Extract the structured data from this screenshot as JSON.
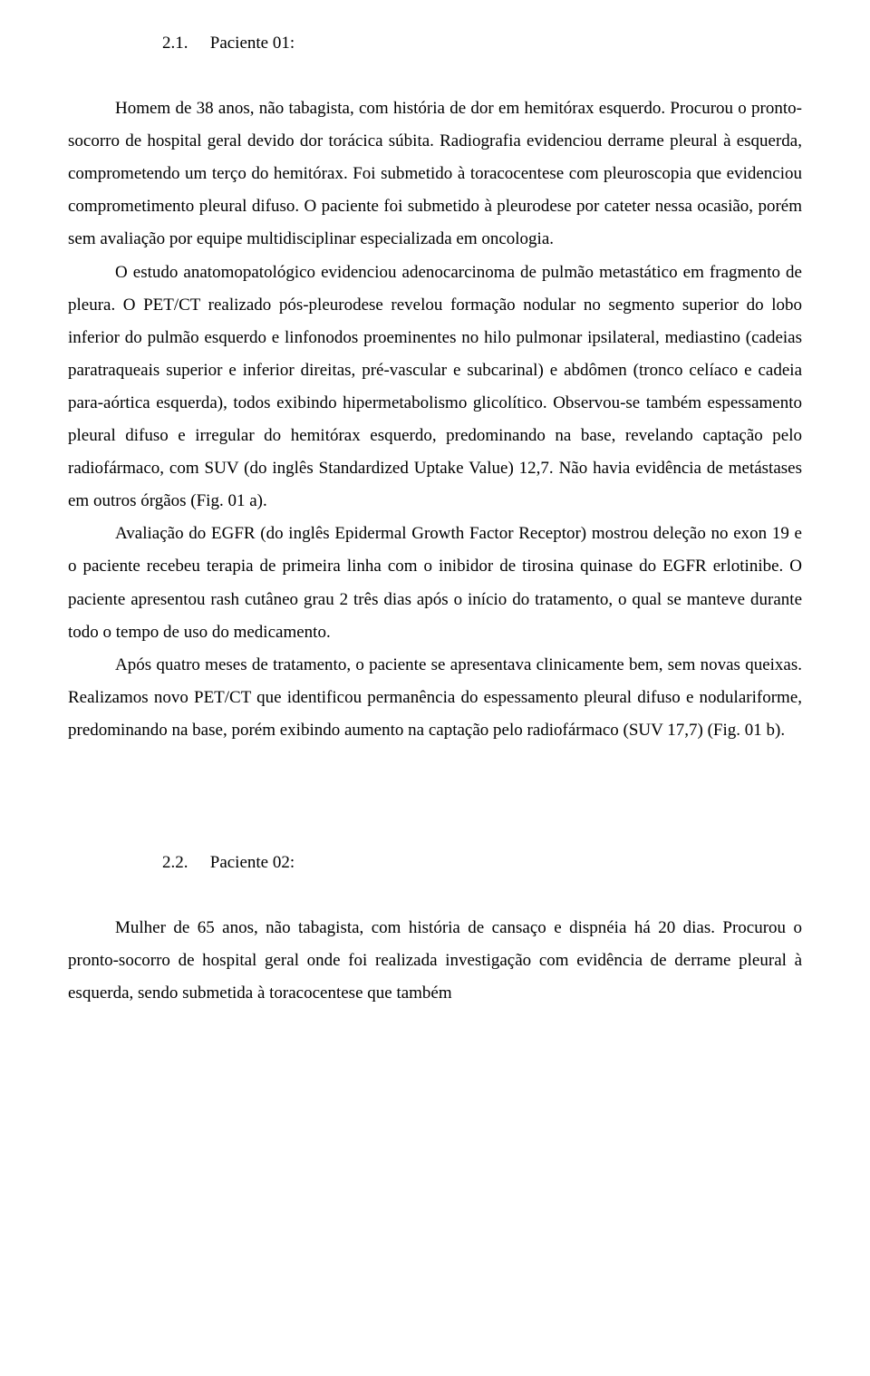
{
  "section1": {
    "number": "2.1.",
    "title": "Paciente 01:"
  },
  "p1": "Homem de 38 anos, não tabagista, com história de dor em hemitórax esquerdo. Procurou o pronto-socorro de hospital geral devido dor torácica súbita. Radiografia evidenciou derrame pleural à esquerda, comprometendo um terço do hemitórax. Foi submetido à toracocentese com pleuroscopia que evidenciou comprometimento pleural difuso. O paciente foi submetido à pleurodese por cateter nessa ocasião, porém sem avaliação por equipe multidisciplinar especializada em oncologia.",
  "p2": "O estudo anatomopatológico evidenciou adenocarcinoma de pulmão metastático em fragmento de pleura. O PET/CT realizado pós-pleurodese revelou formação nodular no segmento superior do lobo inferior do pulmão esquerdo e linfonodos proeminentes no hilo pulmonar ipsilateral, mediastino (cadeias paratraqueais superior e inferior direitas, pré-vascular e subcarinal) e abdômen (tronco celíaco e cadeia para-aórtica esquerda), todos exibindo hipermetabolismo glicolítico. Observou-se também espessamento pleural difuso e irregular do hemitórax esquerdo, predominando na base, revelando captação pelo radiofármaco, com SUV (do inglês Standardized Uptake Value) 12,7. Não havia evidência de metástases em outros órgãos (Fig. 01 a).",
  "p3": "Avaliação do EGFR (do inglês Epidermal Growth Factor Receptor) mostrou deleção no exon 19 e o paciente recebeu terapia de primeira linha com o inibidor de tirosina quinase do EGFR erlotinibe. O paciente apresentou rash cutâneo grau 2 três dias após o início do tratamento, o qual se manteve durante todo o tempo de uso do medicamento.",
  "p4": "Após quatro meses de tratamento, o paciente se apresentava clinicamente bem, sem novas queixas. Realizamos novo PET/CT que identificou permanência do espessamento pleural difuso e nodulariforme, predominando na base, porém exibindo aumento na captação pelo radiofármaco (SUV 17,7) (Fig. 01 b).",
  "section2": {
    "number": "2.2.",
    "title": "Paciente 02:"
  },
  "p5": "Mulher de 65 anos, não tabagista, com história de cansaço e dispnéia há 20 dias. Procurou o pronto-socorro de hospital geral onde foi realizada investigação com evidência de derrame pleural à esquerda, sendo submetida à toracocentese que também"
}
